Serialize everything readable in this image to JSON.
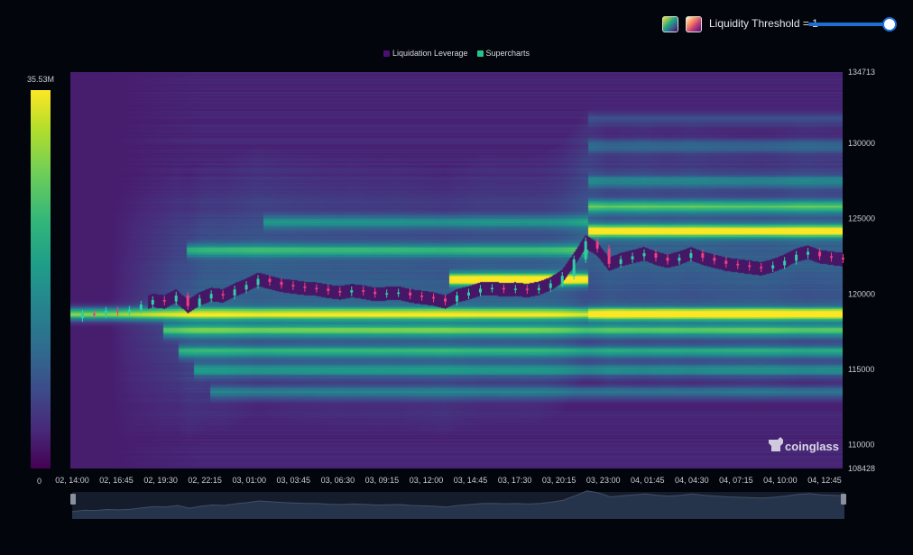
{
  "controls": {
    "threshold_label": "Liquidity Threshold = 1",
    "threshold_value": 1,
    "palette_buttons": [
      "viridis-palette-icon",
      "magma-palette-icon"
    ]
  },
  "colorbar": {
    "max_label": "35.53M",
    "min_label": "0",
    "colors": [
      "#440154",
      "#482878",
      "#3e4989",
      "#31688e",
      "#26828e",
      "#1f9e89",
      "#35b779",
      "#6ece58",
      "#b5de2b",
      "#fde725"
    ]
  },
  "watermark": "coinglass",
  "colors": {
    "background": "#02050b",
    "candle_up": "#2fd0a6",
    "candle_down": "#f0407f",
    "legend_leverage": "#4b0f74",
    "legend_supercharts": "#27c38a",
    "navigator_line": "#3f4e66"
  },
  "chart_data": {
    "type": "heatmap",
    "legend": [
      "Liquidation Leverage",
      "Supercharts"
    ],
    "x_tick_labels": [
      "02, 14:00",
      "02, 16:45",
      "02, 19:30",
      "02, 22:15",
      "03, 01:00",
      "03, 03:45",
      "03, 06:30",
      "03, 09:15",
      "03, 12:00",
      "03, 14:45",
      "03, 17:30",
      "03, 20:15",
      "03, 23:00",
      "04, 01:45",
      "04, 04:30",
      "04, 07:15",
      "04, 10:00",
      "04, 12:45"
    ],
    "y_tick_labels": [
      "134713",
      "130000",
      "125000",
      "120000",
      "115000",
      "110000",
      "108428"
    ],
    "y_ticks": [
      134713,
      130000,
      125000,
      120000,
      115000,
      110000,
      108428
    ],
    "ylim": [
      108428,
      134713
    ],
    "color_range": [
      0,
      35530000
    ],
    "price_series": [
      {
        "t": 0,
        "p": 118400
      },
      {
        "t": 3,
        "p": 118700
      },
      {
        "t": 6,
        "p": 118650
      },
      {
        "t": 9,
        "p": 118900
      },
      {
        "t": 12,
        "p": 118800
      },
      {
        "t": 15,
        "p": 118950
      },
      {
        "t": 18,
        "p": 119300
      },
      {
        "t": 21,
        "p": 119600
      },
      {
        "t": 24,
        "p": 119500
      },
      {
        "t": 27,
        "p": 119900
      },
      {
        "t": 30,
        "p": 119200
      },
      {
        "t": 33,
        "p": 119700
      },
      {
        "t": 36,
        "p": 120000
      },
      {
        "t": 39,
        "p": 119900
      },
      {
        "t": 42,
        "p": 120300
      },
      {
        "t": 45,
        "p": 120600
      },
      {
        "t": 48,
        "p": 121000
      },
      {
        "t": 51,
        "p": 120800
      },
      {
        "t": 54,
        "p": 120600
      },
      {
        "t": 57,
        "p": 120500
      },
      {
        "t": 60,
        "p": 120400
      },
      {
        "t": 63,
        "p": 120350
      },
      {
        "t": 66,
        "p": 120200
      },
      {
        "t": 69,
        "p": 120100
      },
      {
        "t": 72,
        "p": 120250
      },
      {
        "t": 75,
        "p": 120150
      },
      {
        "t": 78,
        "p": 120000
      },
      {
        "t": 81,
        "p": 120050
      },
      {
        "t": 84,
        "p": 120100
      },
      {
        "t": 87,
        "p": 119900
      },
      {
        "t": 90,
        "p": 119800
      },
      {
        "t": 93,
        "p": 119700
      },
      {
        "t": 96,
        "p": 119500
      },
      {
        "t": 99,
        "p": 119900
      },
      {
        "t": 102,
        "p": 120100
      },
      {
        "t": 105,
        "p": 120350
      },
      {
        "t": 108,
        "p": 120400
      },
      {
        "t": 111,
        "p": 120300
      },
      {
        "t": 114,
        "p": 120350
      },
      {
        "t": 117,
        "p": 120250
      },
      {
        "t": 120,
        "p": 120400
      },
      {
        "t": 123,
        "p": 120700
      },
      {
        "t": 126,
        "p": 121200
      },
      {
        "t": 129,
        "p": 122300
      },
      {
        "t": 132,
        "p": 123500
      },
      {
        "t": 135,
        "p": 123000
      },
      {
        "t": 138,
        "p": 122000
      },
      {
        "t": 141,
        "p": 122300
      },
      {
        "t": 144,
        "p": 122500
      },
      {
        "t": 147,
        "p": 122700
      },
      {
        "t": 150,
        "p": 122400
      },
      {
        "t": 153,
        "p": 122200
      },
      {
        "t": 156,
        "p": 122400
      },
      {
        "t": 159,
        "p": 122700
      },
      {
        "t": 162,
        "p": 122400
      },
      {
        "t": 165,
        "p": 122200
      },
      {
        "t": 168,
        "p": 122000
      },
      {
        "t": 171,
        "p": 121900
      },
      {
        "t": 174,
        "p": 121800
      },
      {
        "t": 177,
        "p": 121700
      },
      {
        "t": 180,
        "p": 121900
      },
      {
        "t": 183,
        "p": 122200
      },
      {
        "t": 186,
        "p": 122600
      },
      {
        "t": 189,
        "p": 122800
      },
      {
        "t": 192,
        "p": 122500
      },
      {
        "t": 195,
        "p": 122400
      },
      {
        "t": 198,
        "p": 122300
      }
    ],
    "bands": [
      {
        "price": 118700,
        "start": 0.0,
        "end": 0.67,
        "intensity": 0.75
      },
      {
        "price": 118700,
        "start": 0.67,
        "end": 1.0,
        "intensity": 1.0
      },
      {
        "price": 121000,
        "start": 0.49,
        "end": 0.67,
        "intensity": 0.9
      },
      {
        "price": 124200,
        "start": 0.67,
        "end": 1.0,
        "intensity": 0.85
      },
      {
        "price": 125800,
        "start": 0.67,
        "end": 1.0,
        "intensity": 0.55
      },
      {
        "price": 117600,
        "start": 0.12,
        "end": 1.0,
        "intensity": 0.55
      },
      {
        "price": 116200,
        "start": 0.14,
        "end": 1.0,
        "intensity": 0.45
      },
      {
        "price": 115000,
        "start": 0.16,
        "end": 1.0,
        "intensity": 0.4
      },
      {
        "price": 113500,
        "start": 0.18,
        "end": 1.0,
        "intensity": 0.3
      },
      {
        "price": 122900,
        "start": 0.15,
        "end": 0.67,
        "intensity": 0.45
      },
      {
        "price": 124800,
        "start": 0.25,
        "end": 0.67,
        "intensity": 0.3
      },
      {
        "price": 127500,
        "start": 0.67,
        "end": 1.0,
        "intensity": 0.3
      },
      {
        "price": 129800,
        "start": 0.67,
        "end": 1.0,
        "intensity": 0.22
      },
      {
        "price": 131600,
        "start": 0.67,
        "end": 1.0,
        "intensity": 0.15
      }
    ]
  }
}
